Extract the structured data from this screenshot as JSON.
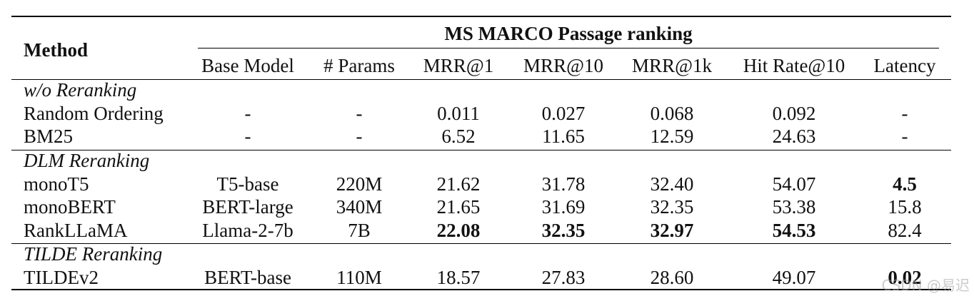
{
  "table": {
    "method_header": "Method",
    "group_header": "MS MARCO Passage ranking",
    "columns": [
      "Base Model",
      "# Params",
      "MRR@1",
      "MRR@10",
      "MRR@1k",
      "Hit Rate@10",
      "Latency"
    ],
    "sections": [
      {
        "title": "w/o Reranking",
        "rows": [
          {
            "method": "Random Ordering",
            "cells": [
              "-",
              "-",
              "0.011",
              "0.027",
              "0.068",
              "0.092",
              "-"
            ],
            "bold": []
          },
          {
            "method": "BM25",
            "cells": [
              "-",
              "-",
              "6.52",
              "11.65",
              "12.59",
              "24.63",
              "-"
            ],
            "bold": []
          }
        ]
      },
      {
        "title": "DLM Reranking",
        "rows": [
          {
            "method": "monoT5",
            "cells": [
              "T5-base",
              "220M",
              "21.62",
              "31.78",
              "32.40",
              "54.07",
              "4.5"
            ],
            "bold": [
              6
            ]
          },
          {
            "method": "monoBERT",
            "cells": [
              "BERT-large",
              "340M",
              "21.65",
              "31.69",
              "32.35",
              "53.38",
              "15.8"
            ],
            "bold": []
          },
          {
            "method": "RankLLaMA",
            "cells": [
              "Llama-2-7b",
              "7B",
              "22.08",
              "32.35",
              "32.97",
              "54.53",
              "82.4"
            ],
            "bold": [
              2,
              3,
              4,
              5
            ]
          }
        ]
      },
      {
        "title": "TILDE Reranking",
        "rows": [
          {
            "method": "TILDEv2",
            "cells": [
              "BERT-base",
              "110M",
              "18.57",
              "27.83",
              "28.60",
              "49.07",
              "0.02"
            ],
            "bold": [
              6
            ]
          }
        ]
      }
    ]
  },
  "watermark": "CSDN @易迟"
}
